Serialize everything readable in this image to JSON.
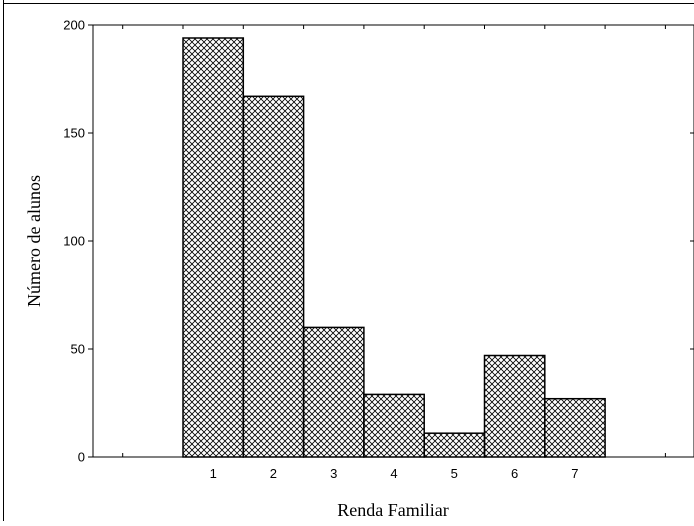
{
  "chart_data": {
    "type": "bar",
    "categories": [
      "1",
      "2",
      "3",
      "4",
      "5",
      "6",
      "7"
    ],
    "values": [
      194,
      167,
      60,
      29,
      11,
      47,
      27
    ],
    "xlabel": "Renda Familiar",
    "ylabel": "Número de alunos",
    "ylim": [
      0,
      200
    ],
    "yticks": [
      "0",
      "50",
      "100",
      "150",
      "200"
    ],
    "grid": false,
    "legend": "none",
    "bar_fill": "crosshatch",
    "colors": {
      "bar_stroke": "#000000",
      "hatch": "#000000",
      "background": "#ffffff"
    }
  }
}
